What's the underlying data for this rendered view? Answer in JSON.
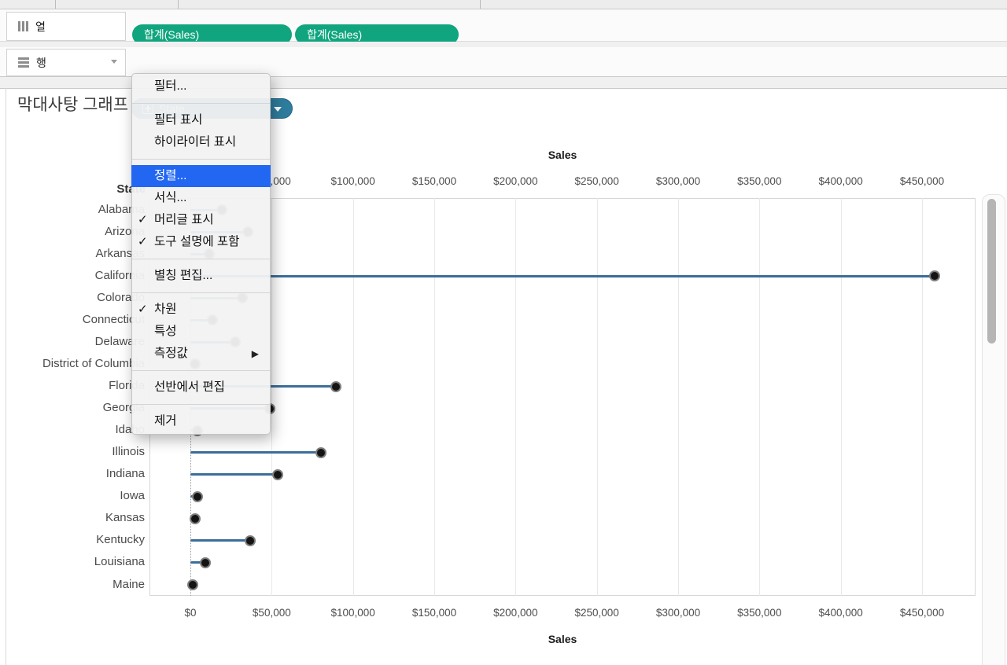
{
  "colors": {
    "pill_green": "#10a57e",
    "pill_blue": "#2e7d9e",
    "menu_highlight": "#2267f2",
    "mark_line": "#3b6e99",
    "mark_dot": "#141414"
  },
  "shelves": {
    "columns_label": "열",
    "rows_label": "행",
    "column_pills": [
      {
        "label": "합계(Sales)"
      },
      {
        "label": "합계(Sales)"
      }
    ],
    "row_pill": {
      "label": "State",
      "icons": [
        "plus-box-icon",
        "caret-down-icon"
      ]
    }
  },
  "worksheet": {
    "title": "막대사탕 그래프"
  },
  "context_menu": {
    "items": [
      {
        "type": "item",
        "name": "filter",
        "label": "필터..."
      },
      {
        "type": "separator"
      },
      {
        "type": "item",
        "name": "show-filter",
        "label": "필터 표시"
      },
      {
        "type": "item",
        "name": "show-highlighter",
        "label": "하이라이터 표시"
      },
      {
        "type": "separator"
      },
      {
        "type": "item",
        "name": "sort",
        "label": "정렬...",
        "highlighted": true
      },
      {
        "type": "item",
        "name": "format",
        "label": "서식..."
      },
      {
        "type": "item",
        "name": "show-header",
        "label": "머리글 표시",
        "checked": true
      },
      {
        "type": "item",
        "name": "include-in-tooltip",
        "label": "도구 설명에 포함",
        "checked": true
      },
      {
        "type": "separator"
      },
      {
        "type": "item",
        "name": "edit-aliases",
        "label": "별칭 편집..."
      },
      {
        "type": "separator"
      },
      {
        "type": "item",
        "name": "dimension",
        "label": "차원",
        "checked": true
      },
      {
        "type": "item",
        "name": "attribute",
        "label": "특성"
      },
      {
        "type": "item",
        "name": "measure",
        "label": "측정값",
        "submenu": true
      },
      {
        "type": "separator"
      },
      {
        "type": "item",
        "name": "edit-in-shelf",
        "label": "선반에서 편집"
      },
      {
        "type": "separator"
      },
      {
        "type": "item",
        "name": "remove",
        "label": "제거"
      }
    ]
  },
  "chart_data": {
    "type": "bar",
    "subtype": "lollipop-horizontal",
    "row_header": "State",
    "xlabel": "Sales",
    "xlabel_top": "Sales",
    "xlim": [
      0,
      481000
    ],
    "grid": true,
    "ticks": [
      0,
      50000,
      100000,
      150000,
      200000,
      250000,
      300000,
      350000,
      400000,
      450000
    ],
    "tick_labels": [
      "$0",
      "$50,000",
      "$100,000",
      "$150,000",
      "$200,000",
      "$250,000",
      "$300,000",
      "$350,000",
      "$400,000",
      "$450,000"
    ],
    "categories": [
      "Alabama",
      "Arizona",
      "Arkansas",
      "California",
      "Colorado",
      "Connecticut",
      "Delaware",
      "District of Columbia",
      "Florida",
      "Georgia",
      "Idaho",
      "Illinois",
      "Indiana",
      "Iowa",
      "Kansas",
      "Kentucky",
      "Louisiana",
      "Maine"
    ],
    "values": [
      19511,
      35282,
      11678,
      457688,
      32108,
      13384,
      27451,
      2865,
      89474,
      49096,
      4383,
      80166,
      53555,
      4580,
      2914,
      36592,
      9217,
      1270
    ]
  }
}
